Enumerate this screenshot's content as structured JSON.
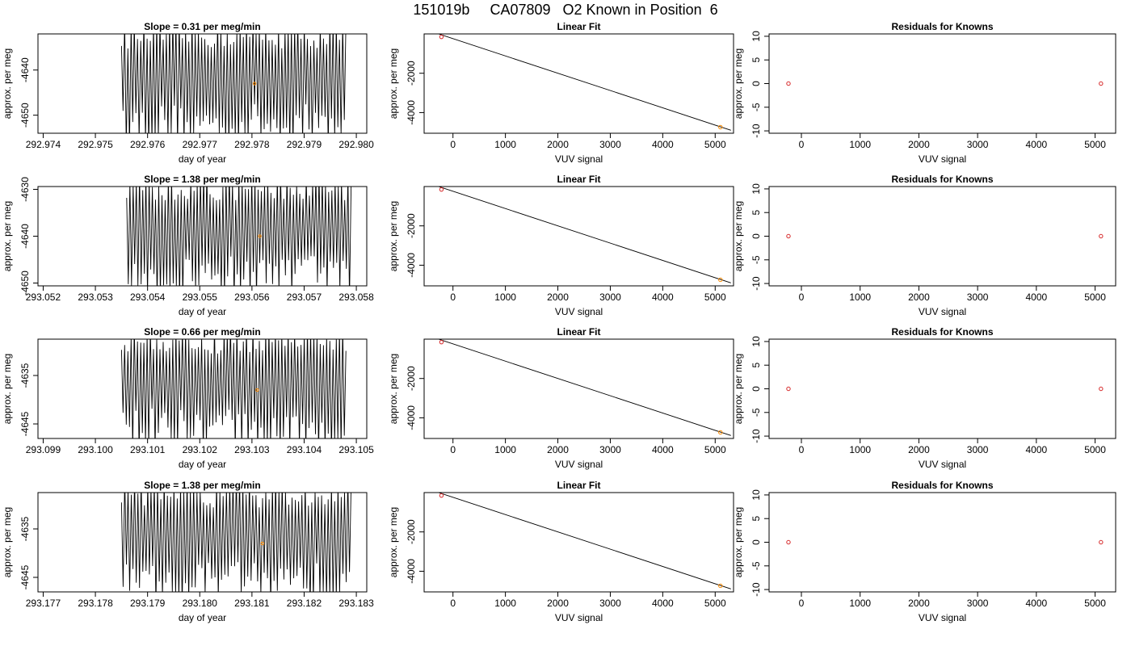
{
  "page": {
    "title": "151019b     CA07809   O2 Known in Position  6"
  },
  "chart_data": [
    {
      "panel": "r1-time",
      "type": "line",
      "title": "Slope =  0.31  per meg/min",
      "xlabel": "day of year",
      "ylabel": "approx. per meg",
      "xlim": [
        292.9739,
        292.9802
      ],
      "ylim": [
        -4654,
        -4632
      ],
      "xticks": [
        "292.974",
        "292.975",
        "292.976",
        "292.977",
        "292.978",
        "292.979",
        "292.980"
      ],
      "yticks": [
        "-4640",
        "-4650"
      ],
      "trace": {
        "x_start": 292.9755,
        "x_end": 292.9798,
        "y_min": -4654,
        "y_max": -4632
      },
      "marker": {
        "x": 292.97805,
        "y": -4643,
        "color": "#ff8c00"
      }
    },
    {
      "panel": "r1-fit",
      "type": "scatter",
      "title": "Linear Fit",
      "xlabel": "VUV signal",
      "ylabel": "approx. per meg",
      "xlim": [
        -550,
        5350
      ],
      "ylim": [
        -5050,
        0
      ],
      "xticks": [
        "0",
        "1000",
        "2000",
        "3000",
        "4000",
        "5000"
      ],
      "yticks": [
        "-2000",
        "-4000"
      ],
      "line": [
        [
          -500,
          200
        ],
        [
          5300,
          -4900
        ]
      ],
      "points": [
        {
          "x": -220,
          "y": -150,
          "color": "#d62728"
        },
        {
          "x": 5100,
          "y": -4740,
          "color": "#ff8c00"
        }
      ]
    },
    {
      "panel": "r1-resid",
      "type": "scatter",
      "title": "Residuals for Knowns",
      "xlabel": "VUV signal",
      "ylabel": "approx. per meg",
      "xlim": [
        -550,
        5350
      ],
      "ylim": [
        -10.5,
        10.5
      ],
      "xticks": [
        "0",
        "1000",
        "2000",
        "3000",
        "4000",
        "5000"
      ],
      "yticks": [
        "-10",
        "-5",
        "0",
        "5",
        "10"
      ],
      "points": [
        {
          "x": -220,
          "y": 0,
          "color": "#d62728"
        },
        {
          "x": 5100,
          "y": 0,
          "color": "#d62728"
        }
      ]
    },
    {
      "panel": "r2-time",
      "type": "line",
      "title": "Slope =  1.38  per meg/min",
      "xlabel": "day of year",
      "ylabel": "approx. per meg",
      "xlim": [
        293.0519,
        293.0582
      ],
      "ylim": [
        -4650.6,
        -4629.4
      ],
      "xticks": [
        "293.052",
        "293.053",
        "293.054",
        "293.055",
        "293.056",
        "293.057",
        "293.058"
      ],
      "yticks": [
        "-4630",
        "-4640",
        "-4650"
      ],
      "trace": {
        "x_start": 293.0536,
        "x_end": 293.0579,
        "y_min": -4650.6,
        "y_max": -4629.4
      },
      "marker": {
        "x": 293.05615,
        "y": -4640,
        "color": "#ff8c00"
      }
    },
    {
      "panel": "r2-fit",
      "type": "scatter",
      "title": "Linear Fit",
      "xlabel": "VUV signal",
      "ylabel": "approx. per meg",
      "xlim": [
        -550,
        5350
      ],
      "ylim": [
        -5050,
        0
      ],
      "xticks": [
        "0",
        "1000",
        "2000",
        "3000",
        "4000",
        "5000"
      ],
      "yticks": [
        "-2000",
        "-4000"
      ],
      "line": [
        [
          -500,
          200
        ],
        [
          5300,
          -4900
        ]
      ],
      "points": [
        {
          "x": -220,
          "y": -150,
          "color": "#d62728"
        },
        {
          "x": 5100,
          "y": -4740,
          "color": "#ff8c00"
        }
      ]
    },
    {
      "panel": "r2-resid",
      "type": "scatter",
      "title": "Residuals for Knowns",
      "xlabel": "VUV signal",
      "ylabel": "approx. per meg",
      "xlim": [
        -550,
        5350
      ],
      "ylim": [
        -10.5,
        10.5
      ],
      "xticks": [
        "0",
        "1000",
        "2000",
        "3000",
        "4000",
        "5000"
      ],
      "yticks": [
        "-10",
        "-5",
        "0",
        "5",
        "10"
      ],
      "points": [
        {
          "x": -220,
          "y": 0,
          "color": "#d62728"
        },
        {
          "x": 5100,
          "y": 0,
          "color": "#d62728"
        }
      ]
    },
    {
      "panel": "r3-time",
      "type": "line",
      "title": "Slope =  0.66  per meg/min",
      "xlabel": "day of year",
      "ylabel": "approx. per meg",
      "xlim": [
        293.0989,
        293.1052
      ],
      "ylim": [
        -4648,
        -4627.5
      ],
      "xticks": [
        "293.099",
        "293.100",
        "293.101",
        "293.102",
        "293.103",
        "293.104",
        "293.105"
      ],
      "yticks": [
        "-4635",
        "-4645"
      ],
      "trace": {
        "x_start": 293.1005,
        "x_end": 293.1048,
        "y_min": -4648,
        "y_max": -4627.5
      },
      "marker": {
        "x": 293.1031,
        "y": -4638,
        "color": "#ff8c00"
      }
    },
    {
      "panel": "r3-fit",
      "type": "scatter",
      "title": "Linear Fit",
      "xlabel": "VUV signal",
      "ylabel": "approx. per meg",
      "xlim": [
        -550,
        5350
      ],
      "ylim": [
        -5050,
        0
      ],
      "xticks": [
        "0",
        "1000",
        "2000",
        "3000",
        "4000",
        "5000"
      ],
      "yticks": [
        "-2000",
        "-4000"
      ],
      "line": [
        [
          -500,
          200
        ],
        [
          5300,
          -4900
        ]
      ],
      "points": [
        {
          "x": -220,
          "y": -150,
          "color": "#d62728"
        },
        {
          "x": 5100,
          "y": -4740,
          "color": "#ff8c00"
        }
      ]
    },
    {
      "panel": "r3-resid",
      "type": "scatter",
      "title": "Residuals for Knowns",
      "xlabel": "VUV signal",
      "ylabel": "approx. per meg",
      "xlim": [
        -550,
        5350
      ],
      "ylim": [
        -10.5,
        10.5
      ],
      "xticks": [
        "0",
        "1000",
        "2000",
        "3000",
        "4000",
        "5000"
      ],
      "yticks": [
        "-10",
        "-5",
        "0",
        "5",
        "10"
      ],
      "points": [
        {
          "x": -220,
          "y": 0,
          "color": "#d62728"
        },
        {
          "x": 5100,
          "y": 0,
          "color": "#d62728"
        }
      ]
    },
    {
      "panel": "r4-time",
      "type": "line",
      "title": "Slope =  1.38  per meg/min",
      "xlabel": "day of year",
      "ylabel": "approx. per meg",
      "xlim": [
        293.1769,
        293.1832
      ],
      "ylim": [
        -4648,
        -4627.5
      ],
      "xticks": [
        "293.177",
        "293.178",
        "293.179",
        "293.180",
        "293.181",
        "293.182",
        "293.183"
      ],
      "yticks": [
        "-4635",
        "-4645"
      ],
      "trace": {
        "x_start": 293.1785,
        "x_end": 293.1829,
        "y_min": -4648,
        "y_max": -4627.5
      },
      "marker": {
        "x": 293.1812,
        "y": -4638,
        "color": "#ff8c00"
      }
    },
    {
      "panel": "r4-fit",
      "type": "scatter",
      "title": "Linear Fit",
      "xlabel": "VUV signal",
      "ylabel": "approx. per meg",
      "xlim": [
        -550,
        5350
      ],
      "ylim": [
        -5050,
        0
      ],
      "xticks": [
        "0",
        "1000",
        "2000",
        "3000",
        "4000",
        "5000"
      ],
      "yticks": [
        "-2000",
        "-4000"
      ],
      "line": [
        [
          -500,
          200
        ],
        [
          5300,
          -4900
        ]
      ],
      "points": [
        {
          "x": -220,
          "y": -150,
          "color": "#d62728"
        },
        {
          "x": 5100,
          "y": -4740,
          "color": "#ff8c00"
        }
      ]
    },
    {
      "panel": "r4-resid",
      "type": "scatter",
      "title": "Residuals for Knowns",
      "xlabel": "VUV signal",
      "ylabel": "approx. per meg",
      "xlim": [
        -550,
        5350
      ],
      "ylim": [
        -10.5,
        10.5
      ],
      "xticks": [
        "0",
        "1000",
        "2000",
        "3000",
        "4000",
        "5000"
      ],
      "yticks": [
        "-10",
        "-5",
        "0",
        "5",
        "10"
      ],
      "points": [
        {
          "x": -220,
          "y": 0,
          "color": "#d62728"
        },
        {
          "x": 5100,
          "y": 0,
          "color": "#d62728"
        }
      ]
    }
  ]
}
